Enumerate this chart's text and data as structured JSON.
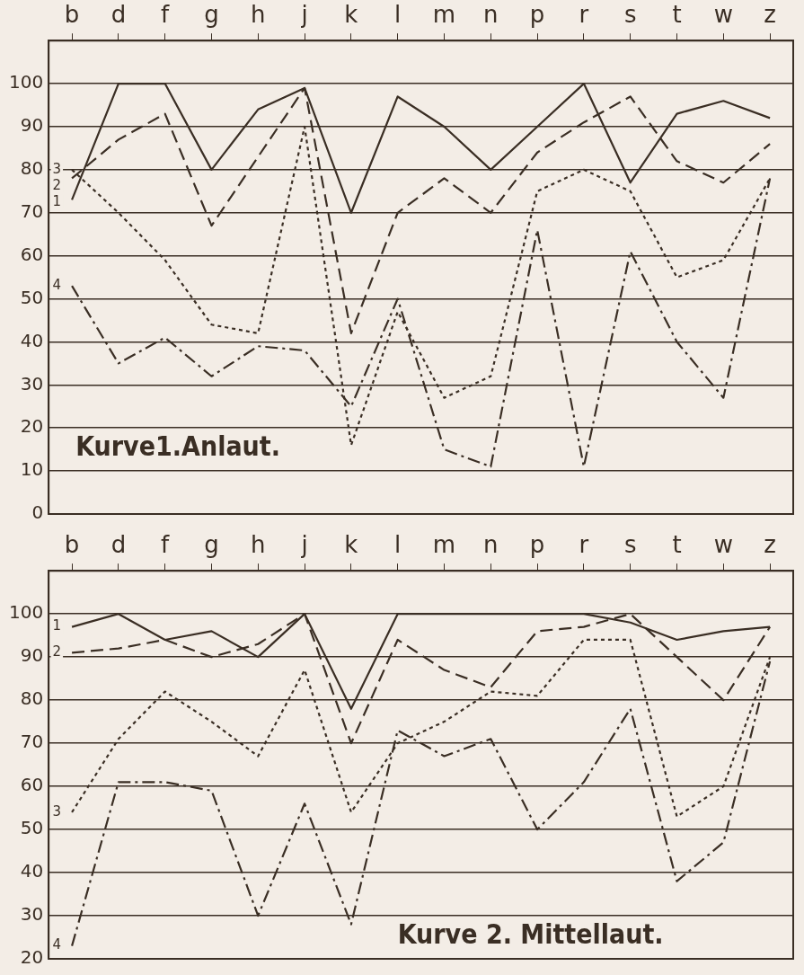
{
  "chart_data": [
    {
      "type": "line",
      "title": "Kurve1.Anlaut.",
      "categories": [
        "b",
        "d",
        "f",
        "g",
        "h",
        "j",
        "k",
        "l",
        "m",
        "n",
        "p",
        "r",
        "s",
        "t",
        "w",
        "z"
      ],
      "series": [
        {
          "name": "1",
          "color": "#3a2e24",
          "line_style": "solid",
          "values": [
            73,
            100,
            100,
            80,
            94,
            99,
            70,
            97,
            90,
            80,
            90,
            100,
            77,
            93,
            96,
            92
          ]
        },
        {
          "name": "2",
          "color": "#3a2e24",
          "line_style": "dashed",
          "values": [
            78,
            87,
            93,
            67,
            83,
            99,
            42,
            70,
            78,
            70,
            84,
            91,
            97,
            82,
            77,
            86
          ]
        },
        {
          "name": "3",
          "color": "#3a2e24",
          "line_style": "dotted",
          "values": [
            80,
            70,
            59,
            44,
            42,
            90,
            16,
            47,
            27,
            32,
            75,
            80,
            75,
            55,
            59,
            78
          ]
        },
        {
          "name": "4",
          "color": "#3a2e24",
          "line_style": "dashdot",
          "values": [
            53,
            35,
            41,
            32,
            39,
            38,
            25,
            50,
            15,
            11,
            66,
            11,
            61,
            40,
            27,
            78
          ]
        }
      ],
      "ylim": [
        0,
        110
      ],
      "yticks": [
        0,
        10,
        20,
        30,
        40,
        50,
        60,
        70,
        80,
        90,
        100
      ],
      "grid": "y",
      "legend": false,
      "marker": "none"
    },
    {
      "type": "line",
      "title": "Kurve 2. Mittellaut.",
      "categories": [
        "b",
        "d",
        "f",
        "g",
        "h",
        "j",
        "k",
        "l",
        "m",
        "n",
        "p",
        "r",
        "s",
        "t",
        "w",
        "z"
      ],
      "series": [
        {
          "name": "1",
          "color": "#3a2e24",
          "line_style": "solid",
          "values": [
            97,
            100,
            94,
            96,
            90,
            100,
            78,
            100,
            100,
            100,
            100,
            100,
            98,
            94,
            96,
            97
          ]
        },
        {
          "name": "2",
          "color": "#3a2e24",
          "line_style": "dashed",
          "values": [
            91,
            92,
            94,
            90,
            93,
            100,
            70,
            94,
            87,
            83,
            96,
            97,
            100,
            90,
            80,
            97
          ]
        },
        {
          "name": "3",
          "color": "#3a2e24",
          "line_style": "dotted",
          "values": [
            54,
            71,
            82,
            75,
            67,
            87,
            54,
            70,
            75,
            82,
            81,
            94,
            94,
            53,
            60,
            90
          ]
        },
        {
          "name": "4",
          "color": "#3a2e24",
          "line_style": "dashdot",
          "values": [
            23,
            61,
            61,
            59,
            30,
            56,
            28,
            73,
            67,
            71,
            50,
            61,
            78,
            38,
            47,
            89
          ]
        }
      ],
      "ylim": [
        20,
        110
      ],
      "yticks": [
        20,
        30,
        40,
        50,
        60,
        70,
        80,
        90,
        100
      ],
      "grid": "y",
      "legend": false,
      "marker": "none"
    }
  ]
}
